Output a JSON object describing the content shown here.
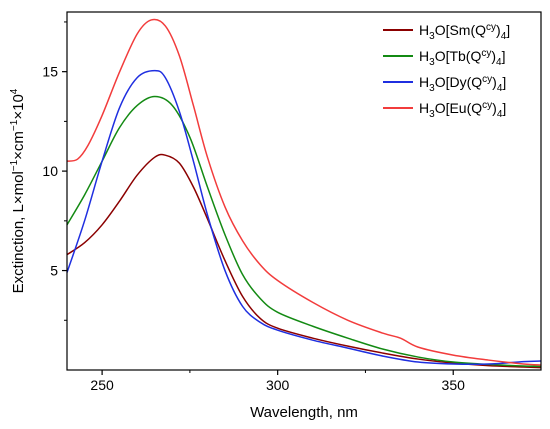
{
  "chart_data": {
    "type": "line",
    "xlabel": "Wavelength, nm",
    "ylabel": {
      "main": "Exctinction, L×mol",
      "sup1": "−1",
      "mid": "×cm",
      "sup2": "−1",
      "end": "×10",
      "sup3": "4"
    },
    "xlim": [
      240,
      375
    ],
    "ylim": [
      0,
      18
    ],
    "xticks": [
      250,
      300,
      350
    ],
    "yticks": [
      5,
      10,
      15
    ],
    "grid": false,
    "legend_position": "top-right",
    "series": [
      {
        "name": "H3O[Sm(Qcy)4]",
        "label_parts": {
          "a": "H",
          "s1": "3",
          "b": "O[Sm(Q",
          "s2": "cy",
          "c": ")",
          "s3": "4",
          "d": "]"
        },
        "color": "#8b0000",
        "x": [
          240,
          245,
          250,
          255,
          260,
          265,
          268,
          272,
          276,
          280,
          285,
          290,
          295,
          300,
          310,
          320,
          330,
          340,
          350,
          360,
          370,
          375
        ],
        "y": [
          5.8,
          6.4,
          7.3,
          8.5,
          9.8,
          10.7,
          10.8,
          10.4,
          9.2,
          7.6,
          5.5,
          3.7,
          2.6,
          2.1,
          1.6,
          1.2,
          0.85,
          0.55,
          0.35,
          0.22,
          0.15,
          0.12
        ]
      },
      {
        "name": "H3O[Tb(Qcy)4]",
        "label_parts": {
          "a": "H",
          "s1": "3",
          "b": "O[Tb(Q",
          "s2": "cy",
          "c": ")",
          "s3": "4",
          "d": "]"
        },
        "color": "#138a13",
        "x": [
          240,
          245,
          250,
          255,
          260,
          265,
          270,
          275,
          280,
          285,
          290,
          295,
          300,
          310,
          320,
          330,
          340,
          350,
          360,
          370,
          375
        ],
        "y": [
          7.3,
          8.8,
          10.5,
          12.2,
          13.3,
          13.75,
          13.3,
          11.7,
          9.2,
          6.8,
          4.8,
          3.6,
          2.9,
          2.2,
          1.6,
          1.05,
          0.65,
          0.4,
          0.28,
          0.2,
          0.18
        ]
      },
      {
        "name": "H3O[Dy(Qcy)4]",
        "label_parts": {
          "a": "H",
          "s1": "3",
          "b": "O[Dy(Q",
          "s2": "cy",
          "c": ")",
          "s3": "4",
          "d": "]"
        },
        "color": "#1f2fe0",
        "x": [
          240,
          245,
          250,
          255,
          260,
          265,
          268,
          272,
          276,
          280,
          285,
          290,
          295,
          300,
          310,
          320,
          330,
          340,
          350,
          360,
          370,
          375
        ],
        "y": [
          4.9,
          7.5,
          10.5,
          13.2,
          14.7,
          15.05,
          14.7,
          13.0,
          10.5,
          7.8,
          5.0,
          3.2,
          2.4,
          2.0,
          1.5,
          1.1,
          0.7,
          0.4,
          0.3,
          0.3,
          0.42,
          0.45
        ]
      },
      {
        "name": "H3O[Eu(Qcy)4]",
        "label_parts": {
          "a": "H",
          "s1": "3",
          "b": "O[Eu(Q",
          "s2": "cy",
          "c": ")",
          "s3": "4",
          "d": "]"
        },
        "color": "#f23c3c",
        "x": [
          240,
          243,
          246,
          250,
          255,
          260,
          264,
          268,
          272,
          276,
          280,
          285,
          290,
          295,
          300,
          310,
          320,
          330,
          335,
          340,
          350,
          360,
          370,
          375
        ],
        "y": [
          10.5,
          10.6,
          11.3,
          12.8,
          15.0,
          16.9,
          17.6,
          17.3,
          15.8,
          13.3,
          10.7,
          8.2,
          6.5,
          5.3,
          4.5,
          3.4,
          2.5,
          1.85,
          1.6,
          1.15,
          0.75,
          0.5,
          0.3,
          0.25
        ]
      }
    ]
  }
}
